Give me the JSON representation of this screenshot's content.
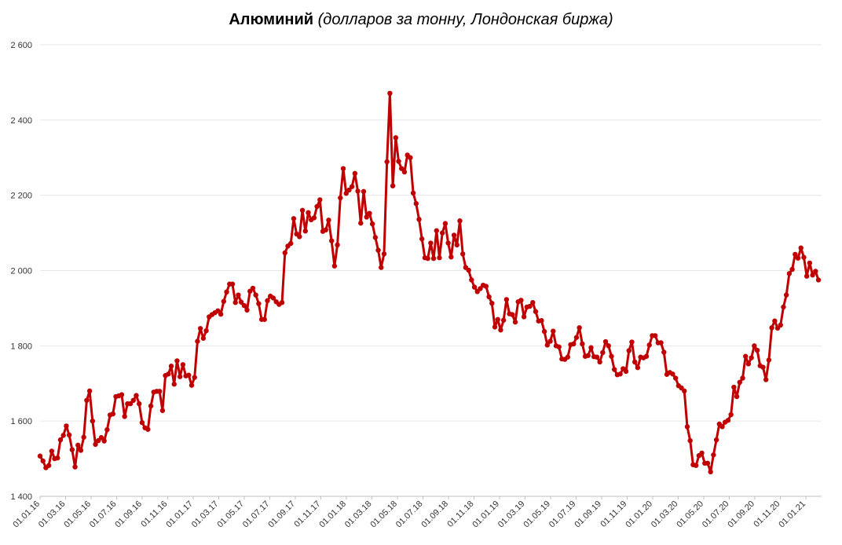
{
  "chart_data": {
    "type": "line",
    "title": "Алюминий",
    "subtitle": "(долларов за тонну, Лондонская биржа)",
    "xlabel": "",
    "ylabel": "",
    "ylim": [
      1400,
      2600
    ],
    "yticks": [
      1400,
      1600,
      1800,
      2000,
      2200,
      2400,
      2600
    ],
    "ytick_labels": [
      "1 400",
      "1 600",
      "1 800",
      "2 000",
      "2 200",
      "2 400",
      "2 600"
    ],
    "x_tick_labels": [
      "01.01.16",
      "01.03.16",
      "01.05.16",
      "01.07.16",
      "01.09.16",
      "01.11.16",
      "01.01.17",
      "01.03.17",
      "01.05.17",
      "01.07.17",
      "01.09.17",
      "01.11.17",
      "01.01.18",
      "01.03.18",
      "01.05.18",
      "01.07.18",
      "01.09.18",
      "01.11.18",
      "01.01.19",
      "01.03.19",
      "01.05.19",
      "01.07.19",
      "01.09.19",
      "01.11.19",
      "01.01.20",
      "01.03.20",
      "01.05.20",
      "01.07.20",
      "01.09.20",
      "01.11.20",
      "01.01.21"
    ],
    "grid": true,
    "legend": "none",
    "series": [
      {
        "color": "#c00000",
        "marker": "circle",
        "values": [
          1507,
          1494,
          1476,
          1482,
          1520,
          1500,
          1502,
          1550,
          1562,
          1587,
          1563,
          1524,
          1478,
          1536,
          1522,
          1557,
          1655,
          1680,
          1600,
          1538,
          1548,
          1556,
          1547,
          1577,
          1616,
          1619,
          1665,
          1667,
          1670,
          1612,
          1646,
          1646,
          1655,
          1668,
          1646,
          1596,
          1582,
          1578,
          1640,
          1677,
          1679,
          1679,
          1628,
          1721,
          1725,
          1746,
          1698,
          1760,
          1718,
          1750,
          1720,
          1722,
          1695,
          1716,
          1812,
          1846,
          1820,
          1840,
          1877,
          1883,
          1888,
          1893,
          1884,
          1918,
          1943,
          1964,
          1964,
          1915,
          1935,
          1916,
          1907,
          1895,
          1945,
          1953,
          1935,
          1912,
          1870,
          1870,
          1920,
          1932,
          1927,
          1917,
          1910,
          1915,
          2047,
          2065,
          2072,
          2138,
          2097,
          2090,
          2160,
          2105,
          2154,
          2135,
          2140,
          2170,
          2188,
          2104,
          2108,
          2134,
          2079,
          2012,
          2068,
          2193,
          2271,
          2205,
          2214,
          2223,
          2258,
          2211,
          2126,
          2210,
          2142,
          2152,
          2124,
          2088,
          2054,
          2008,
          2044,
          2289,
          2471,
          2225,
          2353,
          2290,
          2271,
          2262,
          2307,
          2300,
          2206,
          2178,
          2136,
          2084,
          2034,
          2032,
          2073,
          2032,
          2106,
          2034,
          2100,
          2125,
          2073,
          2036,
          2094,
          2068,
          2132,
          2044,
          2008,
          2001,
          1975,
          1956,
          1944,
          1952,
          1961,
          1958,
          1930,
          1913,
          1850,
          1870,
          1842,
          1868,
          1923,
          1885,
          1883,
          1863,
          1917,
          1921,
          1877,
          1903,
          1905,
          1915,
          1891,
          1866,
          1867,
          1838,
          1802,
          1812,
          1839,
          1800,
          1797,
          1765,
          1764,
          1770,
          1803,
          1805,
          1822,
          1848,
          1805,
          1772,
          1774,
          1795,
          1771,
          1770,
          1757,
          1782,
          1811,
          1800,
          1772,
          1737,
          1723,
          1725,
          1739,
          1732,
          1787,
          1810,
          1757,
          1742,
          1770,
          1768,
          1772,
          1802,
          1827,
          1827,
          1808,
          1808,
          1783,
          1724,
          1729,
          1725,
          1714,
          1694,
          1688,
          1680,
          1585,
          1548,
          1484,
          1482,
          1508,
          1515,
          1488,
          1488,
          1465,
          1510,
          1550,
          1592,
          1585,
          1597,
          1602,
          1617,
          1690,
          1665,
          1703,
          1714,
          1772,
          1752,
          1768,
          1800,
          1788,
          1747,
          1743,
          1710,
          1762,
          1848,
          1866,
          1847,
          1855,
          1903,
          1935,
          1992,
          2003,
          2043,
          2033,
          2060,
          2035,
          1985,
          2020,
          1988,
          1998,
          1975
        ]
      }
    ]
  }
}
